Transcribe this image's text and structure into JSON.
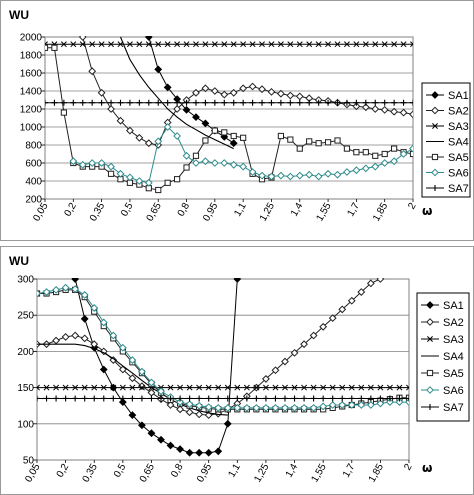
{
  "chart_data": [
    {
      "type": "line",
      "ylabel": "WU",
      "xlabel": "ω",
      "ylim": [
        200,
        2000
      ],
      "yticks": [
        200,
        400,
        600,
        800,
        1000,
        1200,
        1400,
        1600,
        1800,
        2000
      ],
      "xticks": [
        "0,05",
        "0,2",
        "0,35",
        "0,5",
        "0,65",
        "0,8",
        "0,95",
        "1,1",
        "1,25",
        "1,4",
        "1,55",
        "1,7",
        "1,85",
        "2"
      ],
      "grid": true,
      "legend_position": "right",
      "series": [
        {
          "name": "SA1",
          "x": [
            0.6,
            0.65,
            0.7,
            0.75,
            0.8,
            0.85,
            0.9,
            0.95,
            1.0,
            1.05
          ],
          "y": [
            2000,
            1640,
            1440,
            1310,
            1190,
            1110,
            1040,
            960,
            890,
            820
          ]
        },
        {
          "name": "SA2",
          "x": [
            0.25,
            0.3,
            0.35,
            0.4,
            0.45,
            0.5,
            0.55,
            0.6,
            0.65,
            0.7,
            0.75,
            0.8,
            0.85,
            0.9,
            0.95,
            1.0,
            1.05,
            1.1,
            1.15,
            1.2,
            1.25,
            1.3,
            1.35,
            1.4,
            1.45,
            1.5,
            1.55,
            1.6,
            1.65,
            1.7,
            1.75,
            1.8,
            1.85,
            1.9,
            1.95,
            2.0
          ],
          "y": [
            2000,
            1620,
            1380,
            1200,
            1070,
            960,
            880,
            820,
            800,
            1050,
            1200,
            1300,
            1380,
            1430,
            1400,
            1360,
            1380,
            1430,
            1450,
            1420,
            1390,
            1370,
            1350,
            1340,
            1320,
            1300,
            1290,
            1270,
            1250,
            1230,
            1220,
            1200,
            1190,
            1170,
            1160,
            1140
          ]
        },
        {
          "name": "SA3",
          "x": [
            0.05,
            0.1,
            0.15,
            0.2,
            0.25,
            0.3,
            0.35,
            0.4,
            0.45,
            0.5,
            0.55,
            0.6,
            0.65,
            0.7,
            0.75,
            0.8,
            0.85,
            0.9,
            0.95,
            1.0,
            1.05,
            1.1,
            1.15,
            1.2,
            1.25,
            1.3,
            1.35,
            1.4,
            1.45,
            1.5,
            1.55,
            1.6,
            1.65,
            1.7,
            1.75,
            1.8,
            1.85,
            1.9,
            1.95,
            2.0
          ],
          "y": [
            1920,
            1920,
            1920,
            1920,
            1920,
            1920,
            1920,
            1920,
            1920,
            1920,
            1920,
            1920,
            1920,
            1920,
            1920,
            1920,
            1920,
            1920,
            1920,
            1920,
            1920,
            1920,
            1920,
            1920,
            1920,
            1920,
            1920,
            1920,
            1920,
            1920,
            1920,
            1920,
            1920,
            1920,
            1920,
            1920,
            1920,
            1920,
            1920,
            1920
          ]
        },
        {
          "name": "SA4",
          "x": [
            0.45,
            0.5,
            0.55,
            0.6,
            0.65,
            0.7,
            0.75,
            0.8,
            0.85,
            0.9,
            0.95,
            1.0,
            1.05
          ],
          "y": [
            2000,
            1750,
            1580,
            1440,
            1320,
            1200,
            1110,
            1030,
            970,
            910,
            860,
            810,
            760
          ]
        },
        {
          "name": "SA5",
          "x": [
            0.05,
            0.1,
            0.15,
            0.2,
            0.25,
            0.3,
            0.35,
            0.4,
            0.45,
            0.5,
            0.55,
            0.6,
            0.65,
            0.7,
            0.75,
            0.8,
            0.85,
            0.9,
            0.95,
            1.0,
            1.05,
            1.1,
            1.15,
            1.2,
            1.25,
            1.3,
            1.35,
            1.4,
            1.45,
            1.5,
            1.55,
            1.6,
            1.65,
            1.7,
            1.75,
            1.8,
            1.85,
            1.9,
            1.95,
            2.0
          ],
          "y": [
            1880,
            1880,
            1160,
            600,
            560,
            560,
            560,
            480,
            420,
            380,
            360,
            320,
            300,
            380,
            420,
            550,
            680,
            850,
            960,
            940,
            900,
            880,
            480,
            420,
            440,
            900,
            860,
            760,
            840,
            820,
            830,
            850,
            760,
            720,
            720,
            680,
            700,
            760,
            720,
            700
          ]
        },
        {
          "name": "SA6",
          "x": [
            0.2,
            0.25,
            0.3,
            0.35,
            0.4,
            0.45,
            0.5,
            0.55,
            0.6,
            0.65,
            0.7,
            0.75,
            0.8,
            0.85,
            0.9,
            0.95,
            1.0,
            1.05,
            1.1,
            1.15,
            1.2,
            1.25,
            1.3,
            1.35,
            1.4,
            1.45,
            1.5,
            1.55,
            1.6,
            1.65,
            1.7,
            1.75,
            1.8,
            1.85,
            1.9,
            1.95,
            2.0
          ],
          "y": [
            620,
            580,
            600,
            600,
            560,
            480,
            440,
            400,
            380,
            840,
            1000,
            900,
            680,
            600,
            620,
            600,
            600,
            580,
            560,
            500,
            460,
            450,
            460,
            450,
            460,
            470,
            450,
            480,
            470,
            500,
            520,
            540,
            560,
            600,
            620,
            700,
            760
          ]
        },
        {
          "name": "SA7",
          "x": [
            0.05,
            0.1,
            0.15,
            0.2,
            0.25,
            0.3,
            0.35,
            0.4,
            0.45,
            0.5,
            0.55,
            0.6,
            0.65,
            0.7,
            0.75,
            0.8,
            0.85,
            0.9,
            0.95,
            1.0,
            1.05,
            1.1,
            1.15,
            1.2,
            1.25,
            1.3,
            1.35,
            1.4,
            1.45,
            1.5,
            1.55,
            1.6,
            1.65,
            1.7,
            1.75,
            1.8,
            1.85,
            1.9,
            1.95,
            2.0
          ],
          "y": [
            1270,
            1270,
            1270,
            1270,
            1270,
            1270,
            1270,
            1270,
            1270,
            1270,
            1270,
            1270,
            1270,
            1270,
            1270,
            1270,
            1270,
            1270,
            1270,
            1270,
            1270,
            1270,
            1270,
            1270,
            1270,
            1270,
            1270,
            1270,
            1270,
            1270,
            1270,
            1270,
            1270,
            1270,
            1270,
            1270,
            1270,
            1270,
            1270,
            1270
          ]
        }
      ]
    },
    {
      "type": "line",
      "ylabel": "WU",
      "xlabel": "ω",
      "ylim": [
        50,
        300
      ],
      "yticks": [
        50,
        100,
        150,
        200,
        250,
        300
      ],
      "xticks": [
        "0,05",
        "0,2",
        "0,35",
        "0,5",
        "0,65",
        "0,8",
        "0,95",
        "1,1",
        "1,25",
        "1,4",
        "1,55",
        "1,7",
        "1,85",
        "2"
      ],
      "grid": true,
      "legend_position": "right",
      "series": [
        {
          "name": "SA1",
          "x": [
            0.25,
            0.3,
            0.35,
            0.4,
            0.45,
            0.5,
            0.55,
            0.6,
            0.65,
            0.7,
            0.75,
            0.8,
            0.85,
            0.9,
            0.95,
            1.0,
            1.05,
            1.1
          ],
          "y": [
            300,
            245,
            205,
            175,
            150,
            130,
            112,
            98,
            87,
            78,
            70,
            65,
            60,
            60,
            60,
            62,
            100,
            300
          ]
        },
        {
          "name": "SA2",
          "x": [
            0.05,
            0.1,
            0.15,
            0.2,
            0.25,
            0.3,
            0.35,
            0.4,
            0.45,
            0.5,
            0.55,
            0.6,
            0.65,
            0.7,
            0.75,
            0.8,
            0.85,
            0.9,
            0.95,
            1.0,
            1.05,
            1.1,
            1.15,
            1.2,
            1.25,
            1.3,
            1.35,
            1.4,
            1.45,
            1.5,
            1.55,
            1.6,
            1.65,
            1.7,
            1.75,
            1.8,
            1.85
          ],
          "y": [
            210,
            210,
            215,
            220,
            222,
            218,
            210,
            200,
            188,
            175,
            163,
            152,
            143,
            134,
            126,
            120,
            116,
            113,
            112,
            114,
            120,
            128,
            138,
            150,
            162,
            174,
            186,
            198,
            210,
            222,
            234,
            246,
            258,
            270,
            282,
            294,
            300
          ]
        },
        {
          "name": "SA3",
          "x": [
            0.05,
            0.1,
            0.15,
            0.2,
            0.25,
            0.3,
            0.35,
            0.4,
            0.45,
            0.5,
            0.55,
            0.6,
            0.65,
            0.7,
            0.75,
            0.8,
            0.85,
            0.9,
            0.95,
            1.0,
            1.05,
            1.1,
            1.15,
            1.2,
            1.25,
            1.3,
            1.35,
            1.4,
            1.45,
            1.5,
            1.55,
            1.6,
            1.65,
            1.7,
            1.75,
            1.8,
            1.85,
            1.9,
            1.95,
            2.0
          ],
          "y": [
            150,
            150,
            150,
            150,
            150,
            150,
            150,
            150,
            150,
            150,
            150,
            150,
            150,
            150,
            150,
            150,
            150,
            150,
            150,
            150,
            150,
            150,
            150,
            150,
            150,
            150,
            150,
            150,
            150,
            150,
            150,
            150,
            150,
            150,
            150,
            150,
            150,
            150,
            150,
            150
          ]
        },
        {
          "name": "SA4",
          "x": [
            0.05,
            0.1,
            0.15,
            0.2,
            0.25,
            0.3,
            0.35,
            0.4,
            0.45,
            0.5,
            0.55,
            0.6,
            0.65,
            0.7,
            0.75,
            0.8,
            0.85,
            0.9,
            0.95,
            1.0,
            1.05
          ],
          "y": [
            210,
            210,
            210,
            210,
            210,
            208,
            204,
            198,
            190,
            180,
            170,
            160,
            150,
            142,
            134,
            127,
            122,
            118,
            115,
            113,
            112
          ]
        },
        {
          "name": "SA5",
          "x": [
            0.05,
            0.1,
            0.15,
            0.2,
            0.25,
            0.3,
            0.35,
            0.4,
            0.45,
            0.5,
            0.55,
            0.6,
            0.65,
            0.7,
            0.75,
            0.8,
            0.85,
            0.9,
            0.95,
            1.0,
            1.05,
            1.1,
            1.15,
            1.2,
            1.25,
            1.3,
            1.35,
            1.4,
            1.45,
            1.5,
            1.55,
            1.6,
            1.65,
            1.7,
            1.75,
            1.8,
            1.85,
            1.9,
            1.95,
            2.0
          ],
          "y": [
            280,
            280,
            282,
            285,
            285,
            275,
            255,
            235,
            218,
            200,
            185,
            170,
            155,
            143,
            133,
            128,
            125,
            123,
            121,
            120,
            120,
            120,
            120,
            120,
            120,
            120,
            120,
            120,
            120,
            120,
            120,
            122,
            124,
            126,
            128,
            130,
            132,
            134,
            136,
            136
          ]
        },
        {
          "name": "SA6",
          "x": [
            0.05,
            0.1,
            0.15,
            0.2,
            0.25,
            0.3,
            0.35,
            0.4,
            0.45,
            0.5,
            0.55,
            0.6,
            0.65,
            0.7,
            0.75,
            0.8,
            0.85,
            0.9,
            0.95,
            1.0,
            1.05,
            1.1,
            1.15,
            1.2,
            1.25,
            1.3,
            1.35,
            1.4,
            1.45,
            1.5,
            1.55,
            1.6,
            1.65,
            1.7,
            1.75,
            1.8,
            1.85,
            1.9,
            1.95,
            2.0
          ],
          "y": [
            280,
            282,
            285,
            288,
            286,
            278,
            260,
            240,
            222,
            205,
            188,
            172,
            157,
            145,
            137,
            130,
            127,
            125,
            123,
            122,
            122,
            122,
            122,
            122,
            122,
            122,
            122,
            122,
            122,
            122,
            124,
            126,
            126,
            126,
            126,
            126,
            128,
            130,
            130,
            130
          ]
        },
        {
          "name": "SA7",
          "x": [
            0.05,
            0.1,
            0.15,
            0.2,
            0.25,
            0.3,
            0.35,
            0.4,
            0.45,
            0.5,
            0.55,
            0.6,
            0.65,
            0.7,
            0.75,
            0.8,
            0.85,
            0.9,
            0.95,
            1.0,
            1.05,
            1.1,
            1.15,
            1.2,
            1.25,
            1.3,
            1.35,
            1.4,
            1.45,
            1.5,
            1.55,
            1.6,
            1.65,
            1.7,
            1.75,
            1.8,
            1.85,
            1.9,
            1.95,
            2.0
          ],
          "y": [
            135,
            135,
            135,
            135,
            135,
            135,
            135,
            135,
            135,
            135,
            135,
            135,
            135,
            135,
            135,
            135,
            135,
            135,
            135,
            135,
            135,
            135,
            135,
            135,
            135,
            135,
            135,
            135,
            135,
            135,
            135,
            135,
            135,
            135,
            135,
            135,
            135,
            135,
            135,
            135
          ]
        }
      ]
    }
  ],
  "styles": {
    "series_colors": [
      "#000000",
      "#222222",
      "#000000",
      "#000000",
      "#222222",
      "#2e8b8b",
      "#000000"
    ],
    "markers": [
      "diamond-filled",
      "diamond-open",
      "x",
      "none",
      "square-open",
      "diamond-open",
      "plus"
    ]
  }
}
